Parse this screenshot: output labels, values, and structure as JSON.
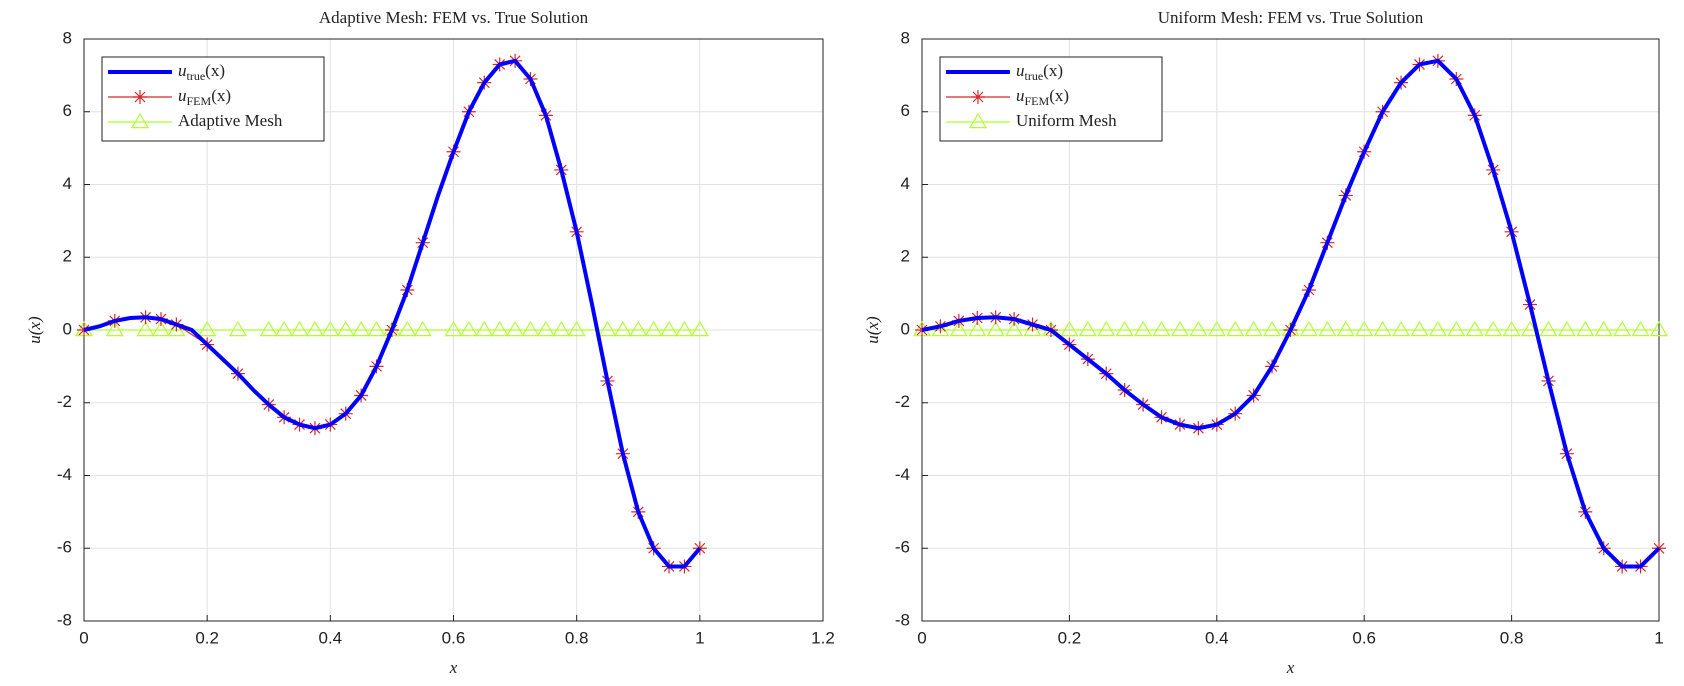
{
  "chart_data": [
    {
      "type": "line",
      "title": "Adaptive Mesh: FEM vs. True Solution",
      "xlabel": "x",
      "ylabel": "u(x)",
      "xlim": [
        0,
        1.2
      ],
      "xticks": [
        0,
        0.2,
        0.4,
        0.6,
        0.8,
        1,
        1.2
      ],
      "ylim": [
        -8,
        8
      ],
      "yticks": [
        -8,
        -6,
        -4,
        -2,
        0,
        2,
        4,
        6,
        8
      ],
      "grid": true,
      "legend": "northwest",
      "series": [
        {
          "name": "u_true(x)",
          "color": "#0000ff",
          "marker": "none",
          "x": [
            0,
            0.025,
            0.05,
            0.075,
            0.1,
            0.125,
            0.15,
            0.175,
            0.2,
            0.225,
            0.25,
            0.275,
            0.3,
            0.325,
            0.35,
            0.375,
            0.4,
            0.425,
            0.45,
            0.475,
            0.5,
            0.525,
            0.55,
            0.575,
            0.6,
            0.625,
            0.65,
            0.675,
            0.7,
            0.725,
            0.75,
            0.775,
            0.8,
            0.825,
            0.85,
            0.875,
            0.9,
            0.925,
            0.95,
            0.975,
            1
          ],
          "values": [
            0,
            0.1,
            0.25,
            0.33,
            0.35,
            0.3,
            0.15,
            0,
            -0.4,
            -0.8,
            -1.2,
            -1.65,
            -2.05,
            -2.4,
            -2.6,
            -2.7,
            -2.6,
            -2.3,
            -1.8,
            -1,
            0,
            1.1,
            2.4,
            3.7,
            4.9,
            6,
            6.8,
            7.3,
            7.4,
            6.9,
            5.9,
            4.4,
            2.7,
            0.7,
            -1.4,
            -3.4,
            -5,
            -6,
            -6.5,
            -6.5,
            -6
          ]
        },
        {
          "name": "u_FEM(x)",
          "color": "#d62728",
          "marker": "star",
          "x": [
            0,
            0.05,
            0.1,
            0.125,
            0.15,
            0.2,
            0.25,
            0.3,
            0.325,
            0.35,
            0.375,
            0.4,
            0.425,
            0.45,
            0.475,
            0.5,
            0.525,
            0.55,
            0.6,
            0.625,
            0.65,
            0.675,
            0.7,
            0.725,
            0.75,
            0.775,
            0.8,
            0.85,
            0.875,
            0.9,
            0.925,
            0.95,
            0.975,
            1
          ],
          "values": [
            0,
            0.25,
            0.35,
            0.3,
            0.15,
            -0.4,
            -1.2,
            -2.05,
            -2.4,
            -2.6,
            -2.7,
            -2.6,
            -2.3,
            -1.8,
            -1,
            0,
            1.1,
            2.4,
            4.9,
            6,
            6.8,
            7.3,
            7.4,
            6.9,
            5.9,
            4.4,
            2.7,
            -1.4,
            -3.4,
            -5,
            -6,
            -6.5,
            -6.5,
            -6
          ]
        },
        {
          "name": "Adaptive Mesh",
          "color": "#adff2f",
          "marker": "triangle",
          "x": [
            0,
            0.05,
            0.1,
            0.125,
            0.15,
            0.2,
            0.25,
            0.3,
            0.325,
            0.35,
            0.375,
            0.4,
            0.425,
            0.45,
            0.475,
            0.5,
            0.525,
            0.55,
            0.6,
            0.625,
            0.65,
            0.675,
            0.7,
            0.725,
            0.75,
            0.775,
            0.8,
            0.85,
            0.875,
            0.9,
            0.925,
            0.95,
            0.975,
            1
          ],
          "values": [
            0,
            0,
            0,
            0,
            0,
            0,
            0,
            0,
            0,
            0,
            0,
            0,
            0,
            0,
            0,
            0,
            0,
            0,
            0,
            0,
            0,
            0,
            0,
            0,
            0,
            0,
            0,
            0,
            0,
            0,
            0,
            0,
            0,
            0
          ]
        }
      ]
    },
    {
      "type": "line",
      "title": "Uniform Mesh: FEM vs. True Solution",
      "xlabel": "x",
      "ylabel": "u(x)",
      "xlim": [
        0,
        1
      ],
      "xticks": [
        0,
        0.2,
        0.4,
        0.6,
        0.8,
        1
      ],
      "ylim": [
        -8,
        8
      ],
      "yticks": [
        -8,
        -6,
        -4,
        -2,
        0,
        2,
        4,
        6,
        8
      ],
      "grid": true,
      "legend": "northwest",
      "series": [
        {
          "name": "u_true(x)",
          "color": "#0000ff",
          "marker": "none",
          "x": [
            0,
            0.025,
            0.05,
            0.075,
            0.1,
            0.125,
            0.15,
            0.175,
            0.2,
            0.225,
            0.25,
            0.275,
            0.3,
            0.325,
            0.35,
            0.375,
            0.4,
            0.425,
            0.45,
            0.475,
            0.5,
            0.525,
            0.55,
            0.575,
            0.6,
            0.625,
            0.65,
            0.675,
            0.7,
            0.725,
            0.75,
            0.775,
            0.8,
            0.825,
            0.85,
            0.875,
            0.9,
            0.925,
            0.95,
            0.975,
            1
          ],
          "values": [
            0,
            0.1,
            0.25,
            0.33,
            0.35,
            0.3,
            0.15,
            0,
            -0.4,
            -0.8,
            -1.2,
            -1.65,
            -2.05,
            -2.4,
            -2.6,
            -2.7,
            -2.6,
            -2.3,
            -1.8,
            -1,
            0,
            1.1,
            2.4,
            3.7,
            4.9,
            6,
            6.8,
            7.3,
            7.4,
            6.9,
            5.9,
            4.4,
            2.7,
            0.7,
            -1.4,
            -3.4,
            -5,
            -6,
            -6.5,
            -6.5,
            -6
          ]
        },
        {
          "name": "u_FEM(x)",
          "color": "#d62728",
          "marker": "star",
          "x": [
            0,
            0.025,
            0.05,
            0.075,
            0.1,
            0.125,
            0.15,
            0.175,
            0.2,
            0.225,
            0.25,
            0.275,
            0.3,
            0.325,
            0.35,
            0.375,
            0.4,
            0.425,
            0.45,
            0.475,
            0.5,
            0.525,
            0.55,
            0.575,
            0.6,
            0.625,
            0.65,
            0.675,
            0.7,
            0.725,
            0.75,
            0.775,
            0.8,
            0.825,
            0.85,
            0.875,
            0.9,
            0.925,
            0.95,
            0.975,
            1
          ],
          "values": [
            0,
            0.1,
            0.25,
            0.33,
            0.35,
            0.3,
            0.15,
            0,
            -0.4,
            -0.8,
            -1.2,
            -1.65,
            -2.05,
            -2.4,
            -2.6,
            -2.7,
            -2.6,
            -2.3,
            -1.8,
            -1,
            0,
            1.1,
            2.4,
            3.7,
            4.9,
            6,
            6.8,
            7.3,
            7.4,
            6.9,
            5.9,
            4.4,
            2.7,
            0.7,
            -1.4,
            -3.4,
            -5,
            -6,
            -6.5,
            -6.5,
            -6
          ]
        },
        {
          "name": "Uniform Mesh",
          "color": "#adff2f",
          "marker": "triangle",
          "x": [
            0,
            0.025,
            0.05,
            0.075,
            0.1,
            0.125,
            0.15,
            0.175,
            0.2,
            0.225,
            0.25,
            0.275,
            0.3,
            0.325,
            0.35,
            0.375,
            0.4,
            0.425,
            0.45,
            0.475,
            0.5,
            0.525,
            0.55,
            0.575,
            0.6,
            0.625,
            0.65,
            0.675,
            0.7,
            0.725,
            0.75,
            0.775,
            0.8,
            0.825,
            0.85,
            0.875,
            0.9,
            0.925,
            0.95,
            0.975,
            1
          ],
          "values": [
            0,
            0,
            0,
            0,
            0,
            0,
            0,
            0,
            0,
            0,
            0,
            0,
            0,
            0,
            0,
            0,
            0,
            0,
            0,
            0,
            0,
            0,
            0,
            0,
            0,
            0,
            0,
            0,
            0,
            0,
            0,
            0,
            0,
            0,
            0,
            0,
            0,
            0,
            0,
            0,
            0
          ]
        }
      ]
    }
  ]
}
